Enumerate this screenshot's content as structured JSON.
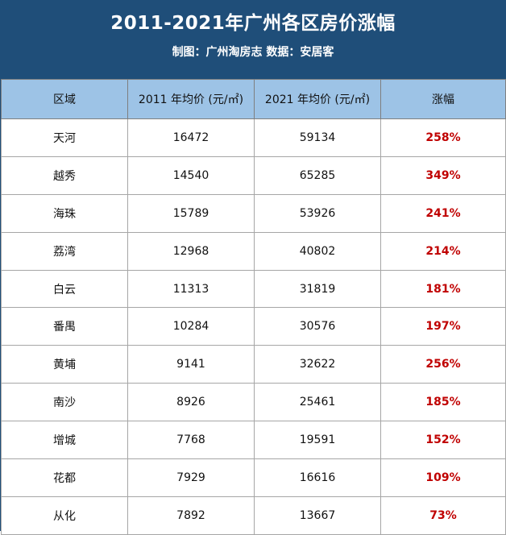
{
  "header": {
    "title": "2011-2021年广州各区房价涨幅",
    "subtitle": "制图：广州淘房志 数据：安居客"
  },
  "columns": [
    "区域",
    "2011 年均价 (元/㎡)",
    "2021 年均价 (元/㎡)",
    "涨幅"
  ],
  "rows": [
    {
      "district": "天河",
      "price_2011": "16472",
      "price_2021": "59134",
      "growth": "258%"
    },
    {
      "district": "越秀",
      "price_2011": "14540",
      "price_2021": "65285",
      "growth": "349%"
    },
    {
      "district": "海珠",
      "price_2011": "15789",
      "price_2021": "53926",
      "growth": "241%"
    },
    {
      "district": "荔湾",
      "price_2011": "12968",
      "price_2021": "40802",
      "growth": "214%"
    },
    {
      "district": "白云",
      "price_2011": "11313",
      "price_2021": "31819",
      "growth": "181%"
    },
    {
      "district": "番禺",
      "price_2011": "10284",
      "price_2021": "30576",
      "growth": "197%"
    },
    {
      "district": "黄埔",
      "price_2011": "9141",
      "price_2021": "32622",
      "growth": "256%"
    },
    {
      "district": "南沙",
      "price_2011": "8926",
      "price_2021": "25461",
      "growth": "185%"
    },
    {
      "district": "增城",
      "price_2011": "7768",
      "price_2021": "19591",
      "growth": "152%"
    },
    {
      "district": "花都",
      "price_2011": "7929",
      "price_2021": "16616",
      "growth": "109%"
    },
    {
      "district": "从化",
      "price_2011": "7892",
      "price_2021": "13667",
      "growth": "73%"
    }
  ],
  "colors": {
    "header_bg": "#1f4e79",
    "column_header_bg": "#9dc3e6",
    "growth_text": "#c00000"
  }
}
